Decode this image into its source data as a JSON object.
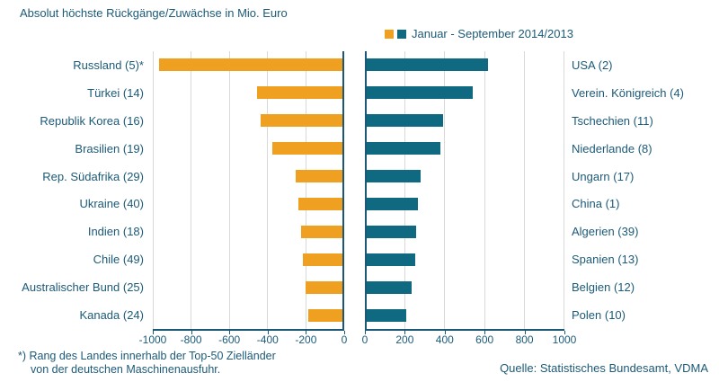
{
  "footnote": {
    "line1": "*) Rang des Landes innerhalb der Top-50 Zielländer",
    "line2": "von der deutschen Maschinenausfuhr."
  },
  "source": "Quelle: Statistisches Bundesamt, VDMA",
  "colors": {
    "decline_orange": "#EFA021",
    "increase_teal": "#0F6980",
    "text": "#1C5A78",
    "axis": "#1C5876",
    "gridline": "#D9D9D9",
    "background": "#FFFFFF"
  },
  "chart_data": {
    "type": "bar",
    "layout": "diverging-horizontal-two-panels",
    "title": "Absolut höchste Rückgänge/Zuwächse in Mio. Euro",
    "legend_label": "Januar - September 2014/2013",
    "xlabel": "",
    "ylabel": "",
    "grid": true,
    "legend_position": "top-center",
    "panels": [
      {
        "side": "left",
        "name": "Rückgänge",
        "bar_color": "#EFA021",
        "xlim": [
          -1000,
          0
        ],
        "tick_values": [
          -1000,
          -800,
          -600,
          -400,
          -200,
          0
        ],
        "tick_labels": [
          "-1000",
          "-800",
          "-600",
          "-400",
          "-200",
          "0"
        ],
        "categories": [
          "Russland (5)*",
          "Türkei (14)",
          "Republik Korea (16)",
          "Brasilien (19)",
          "Rep. Südafrika (29)",
          "Ukraine (40)",
          "Indien (18)",
          "Chile (49)",
          "Australischer Bund (25)",
          "Kanada (24)"
        ],
        "values": [
          -965,
          -455,
          -435,
          -375,
          -255,
          -240,
          -225,
          -215,
          -200,
          -190
        ]
      },
      {
        "side": "right",
        "name": "Zuwächse",
        "bar_color": "#0F6980",
        "xlim": [
          0,
          1000
        ],
        "tick_values": [
          0,
          200,
          400,
          600,
          800,
          1000
        ],
        "tick_labels": [
          "0",
          "200",
          "400",
          "600",
          "800",
          "1000"
        ],
        "categories": [
          "USA (2)",
          "Verein. Königreich (4)",
          "Tschechien (11)",
          "Niederlande (8)",
          "Ungarn (17)",
          "China (1)",
          "Algerien (39)",
          "Spanien (13)",
          "Belgien (12)",
          "Polen (10)"
        ],
        "values": [
          615,
          540,
          390,
          380,
          280,
          265,
          255,
          250,
          235,
          205
        ]
      }
    ]
  }
}
